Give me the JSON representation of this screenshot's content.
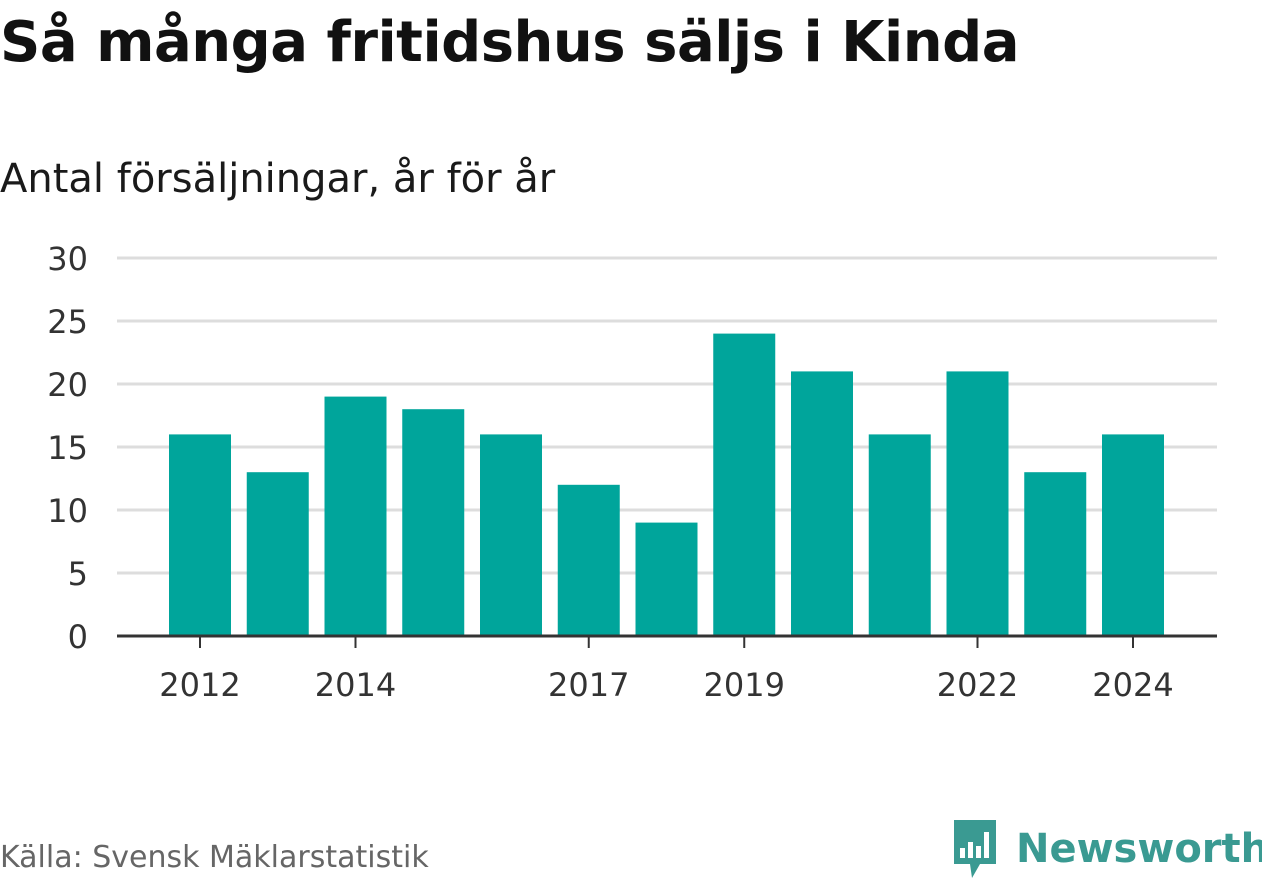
{
  "title": "Så många fritidshus säljs i Kinda",
  "subtitle": "Antal försäljningar, år för år",
  "source": "Källa: Svensk Mäklarstatistik",
  "brand": {
    "name": "Newsworthy",
    "icon": "newsworthy-logo-icon"
  },
  "colors": {
    "bar": "#00a59b",
    "grid": "#dddddd",
    "axis": "#333333",
    "brand": "#3a9a92"
  },
  "chart_data": {
    "type": "bar",
    "categories": [
      "2012",
      "2013",
      "2014",
      "2015",
      "2016",
      "2017",
      "2018",
      "2019",
      "2020",
      "2021",
      "2022",
      "2023",
      "2024"
    ],
    "values": [
      16,
      13,
      19,
      18,
      16,
      12,
      9,
      24,
      21,
      16,
      21,
      13,
      16
    ],
    "x_tick_labels": [
      "2012",
      "2014",
      "2017",
      "2019",
      "2022",
      "2024"
    ],
    "y_ticks": [
      "0",
      "5",
      "10",
      "15",
      "20",
      "25",
      "30"
    ],
    "ylim": [
      0,
      30
    ],
    "grid": true,
    "legend": "none"
  }
}
